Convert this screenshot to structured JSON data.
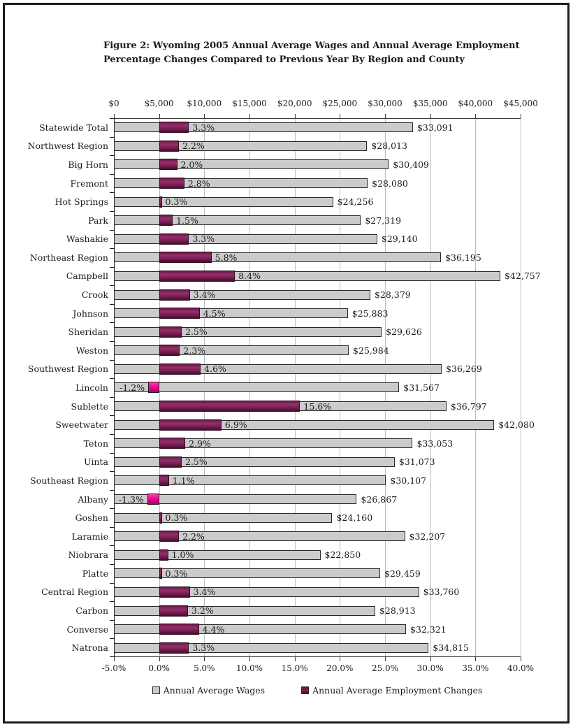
{
  "title": "Figure 2: Wyoming 2005 Annual Average Wages and Annual Average Employment Percentage Changes Compared to Previous Year By Region and County",
  "colors": {
    "wage_bar": "#cbcbcb",
    "employment_bar": "#7c2054",
    "employment_negative": "#e6008c",
    "gridline": "#bcbcbc",
    "axis": "#1a1a1a"
  },
  "chart_data": {
    "type": "bar",
    "orientation": "horizontal",
    "title": "Figure 2: Wyoming 2005 Annual Average Wages and Annual Average Employment Percentage Changes Compared to Previous Year By Region and County",
    "top_axis": {
      "min": 0,
      "max": 45000,
      "step": 5000,
      "ticks": [
        "$0",
        "$5,000",
        "$10,000",
        "$15,000",
        "$20,000",
        "$25,000",
        "$30,000",
        "$35,000",
        "$40,000",
        "$45,000"
      ]
    },
    "bottom_axis": {
      "min": -5,
      "max": 40,
      "step": 5,
      "ticks": [
        "-5.0%",
        "0.0%",
        "5.0%",
        "10.0%",
        "15.0%",
        "20.0%",
        "25.0%",
        "30.0%",
        "35.0%",
        "40.0%"
      ]
    },
    "grid": true,
    "legend_position": "bottom",
    "categories": [
      "Statewide Total",
      "Northwest Region",
      "Big Horn",
      "Fremont",
      "Hot Springs",
      "Park",
      "Washakie",
      "Northeast Region",
      "Campbell",
      "Crook",
      "Johnson",
      "Sheridan",
      "Weston",
      "Southwest Region",
      "Lincoln",
      "Sublette",
      "Sweetwater",
      "Teton",
      "Uinta",
      "Southeast Region",
      "Albany",
      "Goshen",
      "Laramie",
      "Niobrara",
      "Platte",
      "Central Region",
      "Carbon",
      "Converse",
      "Natrona"
    ],
    "series": [
      {
        "name": "Annual Average Wages",
        "axis": "top",
        "unit": "USD",
        "color": "#cbcbcb",
        "values": [
          33091,
          28013,
          30409,
          28080,
          24256,
          27319,
          29140,
          36195,
          42757,
          28379,
          25883,
          29626,
          25984,
          36269,
          31567,
          36797,
          42080,
          33053,
          31073,
          30107,
          26867,
          24160,
          32207,
          22850,
          29459,
          33760,
          28913,
          32321,
          34815
        ],
        "labels": [
          "$33,091",
          "$28,013",
          "$30,409",
          "$28,080",
          "$24,256",
          "$27,319",
          "$29,140",
          "$36,195",
          "$42,757",
          "$28,379",
          "$25,883",
          "$29,626",
          "$25,984",
          "$36,269",
          "$31,567",
          "$36,797",
          "$42,080",
          "$33,053",
          "$31,073",
          "$30,107",
          "$26,867",
          "$24,160",
          "$32,207",
          "$22,850",
          "$29,459",
          "$33,760",
          "$28,913",
          "$32,321",
          "$34,815"
        ]
      },
      {
        "name": "Annual Average Employment Changes",
        "axis": "bottom",
        "unit": "percent",
        "color": "#7c2054",
        "negative_color": "#e6008c",
        "values": [
          3.3,
          2.2,
          2.0,
          2.8,
          0.3,
          1.5,
          3.3,
          5.8,
          8.4,
          3.4,
          4.5,
          2.5,
          2.3,
          4.6,
          -1.2,
          15.6,
          6.9,
          2.9,
          2.5,
          1.1,
          -1.3,
          0.3,
          2.2,
          1.0,
          0.3,
          3.4,
          3.2,
          4.4,
          3.3
        ],
        "labels": [
          "3.3%",
          "2.2%",
          "2.0%",
          "2.8%",
          "0.3%",
          "1.5%",
          "3.3%",
          "5.8%",
          "8.4%",
          "3.4%",
          "4.5%",
          "2.5%",
          "2.3%",
          "4.6%",
          "-1.2%",
          "15.6%",
          "6.9%",
          "2.9%",
          "2.5%",
          "1.1%",
          "-1.3%",
          "0.3%",
          "2.2%",
          "1.0%",
          "0.3%",
          "3.4%",
          "3.2%",
          "4.4%",
          "3.3%"
        ]
      }
    ]
  }
}
